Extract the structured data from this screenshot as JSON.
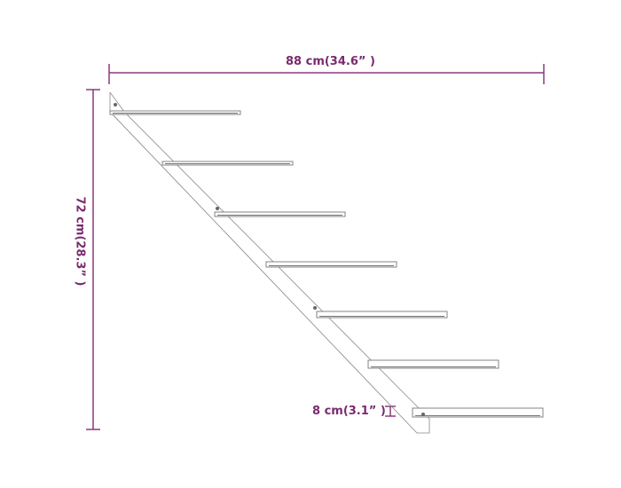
{
  "dimensions": {
    "width": "88 cm(34.6” )",
    "height": "72 cm(28.3” )",
    "depth": "8 cm(3.1” )"
  },
  "colors": {
    "dimension": "#7a2a6e",
    "line": "#777777"
  },
  "shelf_count": 7
}
